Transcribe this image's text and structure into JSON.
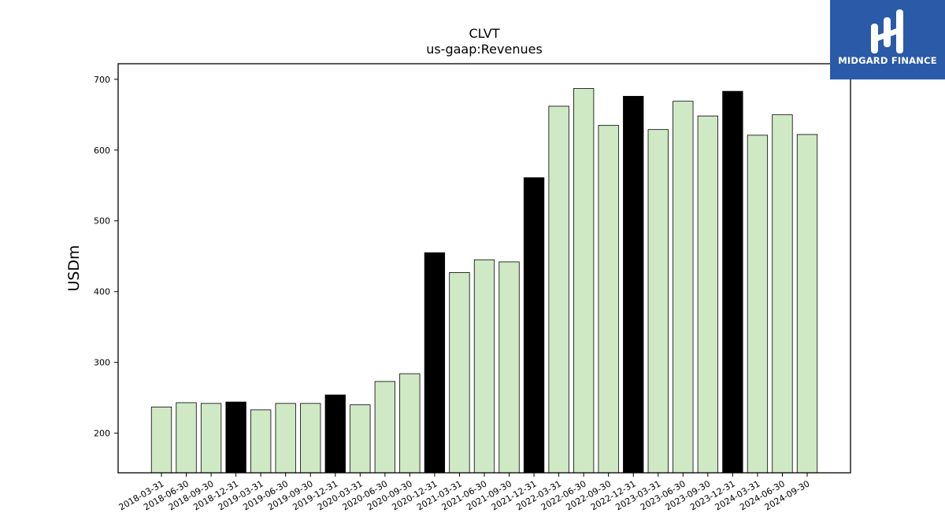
{
  "logo": {
    "text": "MIDGARD FINANCE"
  },
  "colors": {
    "normal_bar": "#cfe9c5",
    "annual_bar": "#000000",
    "logo_bg": "#2a5aa8"
  },
  "chart_data": {
    "type": "bar",
    "title": "CLVT",
    "subtitle": "us-gaap:Revenues",
    "ylabel": "USDm",
    "xlabel": "",
    "ylim": [
      144,
      722
    ],
    "yticks": [
      200,
      300,
      400,
      500,
      600,
      700
    ],
    "grid": false,
    "categories": [
      "2018-03-31",
      "2018-06-30",
      "2018-09-30",
      "2018-12-31",
      "2019-03-31",
      "2019-06-30",
      "2019-09-30",
      "2019-12-31",
      "2020-03-31",
      "2020-06-30",
      "2020-09-30",
      "2020-12-31",
      "2021-03-31",
      "2021-06-30",
      "2021-09-30",
      "2021-12-31",
      "2022-03-31",
      "2022-06-30",
      "2022-09-30",
      "2022-12-31",
      "2023-03-31",
      "2023-06-30",
      "2023-09-30",
      "2023-12-31",
      "2024-03-31",
      "2024-06-30",
      "2024-09-30"
    ],
    "values": [
      237,
      243,
      242,
      244,
      233,
      242,
      242,
      254,
      240,
      273,
      284,
      455,
      427,
      445,
      442,
      561,
      662,
      687,
      635,
      676,
      629,
      669,
      648,
      683,
      621,
      650,
      622
    ],
    "highlight": [
      false,
      false,
      false,
      true,
      false,
      false,
      false,
      true,
      false,
      false,
      false,
      true,
      false,
      false,
      false,
      true,
      false,
      false,
      false,
      true,
      false,
      false,
      false,
      true,
      false,
      false,
      false
    ]
  }
}
